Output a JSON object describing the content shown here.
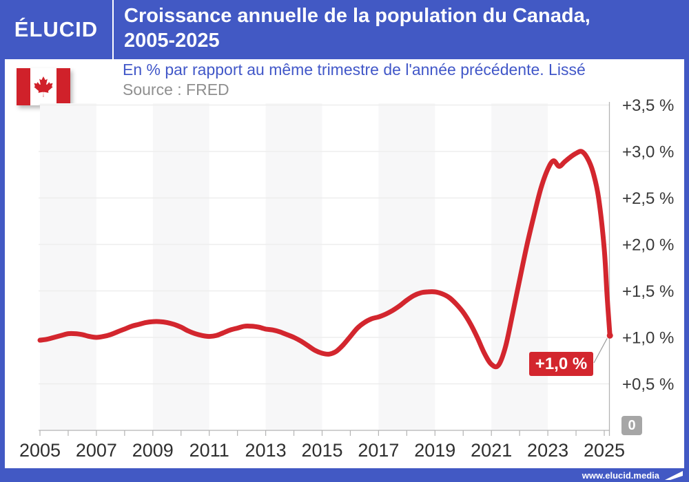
{
  "brand": {
    "logo_text": "ÉLUCID",
    "footer_url": "www.elucid.media"
  },
  "header": {
    "title_line1": "Croissance annuelle de la population du Canada,",
    "title_line2": "2005-2025"
  },
  "subtitle": "En % par rapport au même trimestre de l'année précédente. Lissé",
  "source": "Source : FRED",
  "annotation": {
    "label": "+1,0 %"
  },
  "colors": {
    "brand_blue": "#4259c4",
    "subtitle_blue": "#4157c8",
    "line_red": "#d3262e",
    "flag_red": "#d0212a",
    "band_gray": "#f7f7f8",
    "grid_gray": "#ebebeb",
    "axis_gray": "#b3b3b3",
    "tick_label_dark": "#2f2f2f",
    "source_gray": "#8f8f8f",
    "zero_badge_gray": "#a6a6a6",
    "connector_gray": "#9a9a9a"
  },
  "chart_data": {
    "type": "line",
    "title": "Croissance annuelle de la population du Canada, 2005-2025",
    "subtitle": "En % par rapport au même trimestre de l'année précédente. Lissé",
    "source": "Source : FRED",
    "xlabel": "",
    "ylabel": "En % par rapport au même trimestre de l'année précédente",
    "xlim": [
      2005,
      2025.2
    ],
    "ylim": [
      0,
      3.52
    ],
    "grid": true,
    "background_bands": "alternating 2-year vertical bands starting 2005-2007",
    "x_ticks": [
      2005,
      2007,
      2009,
      2011,
      2013,
      2015,
      2017,
      2019,
      2021,
      2023,
      2025
    ],
    "x_minor_tick_step": 1,
    "y_ticks": [
      {
        "value": 3.5,
        "label": "+3,5 %"
      },
      {
        "value": 3.0,
        "label": "+3,0 %"
      },
      {
        "value": 2.5,
        "label": "+2,5 %"
      },
      {
        "value": 2.0,
        "label": "+2,0 %"
      },
      {
        "value": 1.5,
        "label": "+1,5 %"
      },
      {
        "value": 1.0,
        "label": "+1,0 %"
      },
      {
        "value": 0.5,
        "label": "+0,5 %"
      }
    ],
    "y_axis_zero_badge": "0",
    "end_label": "+1,0 %",
    "series": [
      {
        "name": "Croissance annuelle de la population du Canada (%)",
        "color": "#d3262e",
        "points": [
          [
            2005.0,
            0.97
          ],
          [
            2005.25,
            0.98
          ],
          [
            2005.5,
            1.0
          ],
          [
            2005.75,
            1.02
          ],
          [
            2006.0,
            1.04
          ],
          [
            2006.25,
            1.04
          ],
          [
            2006.5,
            1.03
          ],
          [
            2006.75,
            1.01
          ],
          [
            2007.0,
            1.0
          ],
          [
            2007.25,
            1.01
          ],
          [
            2007.5,
            1.03
          ],
          [
            2007.75,
            1.06
          ],
          [
            2008.0,
            1.09
          ],
          [
            2008.25,
            1.12
          ],
          [
            2008.5,
            1.14
          ],
          [
            2008.75,
            1.16
          ],
          [
            2009.0,
            1.17
          ],
          [
            2009.25,
            1.17
          ],
          [
            2009.5,
            1.16
          ],
          [
            2009.75,
            1.14
          ],
          [
            2010.0,
            1.11
          ],
          [
            2010.25,
            1.07
          ],
          [
            2010.5,
            1.04
          ],
          [
            2010.75,
            1.02
          ],
          [
            2011.0,
            1.01
          ],
          [
            2011.25,
            1.02
          ],
          [
            2011.5,
            1.05
          ],
          [
            2011.75,
            1.08
          ],
          [
            2012.0,
            1.1
          ],
          [
            2012.25,
            1.12
          ],
          [
            2012.5,
            1.12
          ],
          [
            2012.75,
            1.11
          ],
          [
            2013.0,
            1.09
          ],
          [
            2013.25,
            1.08
          ],
          [
            2013.5,
            1.06
          ],
          [
            2013.75,
            1.03
          ],
          [
            2014.0,
            1.0
          ],
          [
            2014.25,
            0.96
          ],
          [
            2014.5,
            0.91
          ],
          [
            2014.75,
            0.86
          ],
          [
            2015.0,
            0.83
          ],
          [
            2015.25,
            0.82
          ],
          [
            2015.5,
            0.85
          ],
          [
            2015.75,
            0.92
          ],
          [
            2016.0,
            1.01
          ],
          [
            2016.25,
            1.1
          ],
          [
            2016.5,
            1.16
          ],
          [
            2016.75,
            1.2
          ],
          [
            2017.0,
            1.22
          ],
          [
            2017.25,
            1.25
          ],
          [
            2017.5,
            1.29
          ],
          [
            2017.75,
            1.34
          ],
          [
            2018.0,
            1.4
          ],
          [
            2018.25,
            1.45
          ],
          [
            2018.5,
            1.48
          ],
          [
            2018.75,
            1.49
          ],
          [
            2019.0,
            1.49
          ],
          [
            2019.25,
            1.47
          ],
          [
            2019.5,
            1.43
          ],
          [
            2019.75,
            1.36
          ],
          [
            2020.0,
            1.27
          ],
          [
            2020.25,
            1.15
          ],
          [
            2020.5,
            1.0
          ],
          [
            2020.75,
            0.83
          ],
          [
            2021.0,
            0.71
          ],
          [
            2021.25,
            0.7
          ],
          [
            2021.5,
            0.9
          ],
          [
            2021.75,
            1.25
          ],
          [
            2022.0,
            1.62
          ],
          [
            2022.25,
            1.98
          ],
          [
            2022.5,
            2.3
          ],
          [
            2022.75,
            2.6
          ],
          [
            2023.0,
            2.81
          ],
          [
            2023.2,
            2.9
          ],
          [
            2023.4,
            2.84
          ],
          [
            2023.6,
            2.89
          ],
          [
            2023.8,
            2.94
          ],
          [
            2024.0,
            2.98
          ],
          [
            2024.2,
            3.0
          ],
          [
            2024.4,
            2.93
          ],
          [
            2024.6,
            2.78
          ],
          [
            2024.8,
            2.5
          ],
          [
            2025.0,
            1.95
          ],
          [
            2025.1,
            1.45
          ],
          [
            2025.2,
            1.02
          ]
        ]
      }
    ]
  }
}
